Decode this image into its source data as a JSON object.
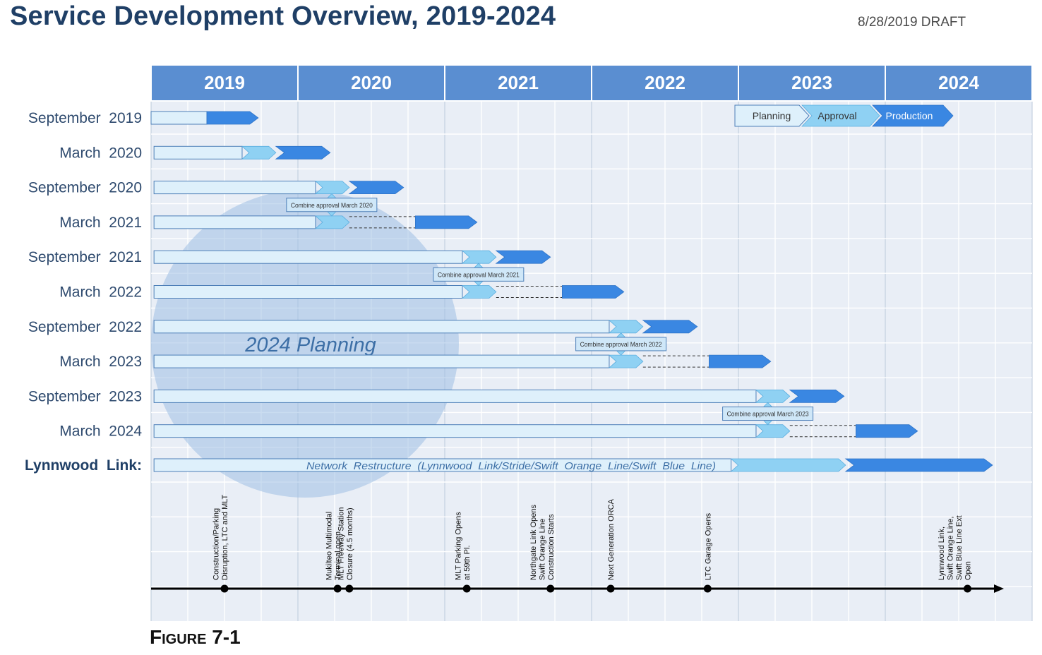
{
  "header": {
    "title": "Service Development Overview, 2019-2024",
    "draft_label": "8/28/2019 DRAFT"
  },
  "caption": "Figure 7-1",
  "colors": {
    "header_band": "#5a8ed1",
    "planning": "#def0fb",
    "approval": "#8fd1f3",
    "production": "#3a87e2",
    "grid_bg": "#e9eef6",
    "circle": "#9ec0e4",
    "outline": "#4d7fb8"
  },
  "chart_data": {
    "type": "gantt",
    "title": "Service Development Overview, 2019-2024",
    "x_axis": {
      "unit": "year",
      "range": [
        2019,
        2025
      ],
      "labels": [
        "2019",
        "2020",
        "2021",
        "2022",
        "2023",
        "2024"
      ]
    },
    "legend": {
      "placement": "top-right",
      "items": [
        {
          "label": "Planning",
          "color": "#def0fb"
        },
        {
          "label": "Approval",
          "color": "#8fd1f3"
        },
        {
          "label": "Production",
          "color": "#3a87e2"
        }
      ]
    },
    "rows": [
      {
        "label": "September  2019",
        "bold": false,
        "planning": [
          2019.0,
          2019.38
        ],
        "production": [
          2019.38,
          2019.73
        ]
      },
      {
        "label": "March  2020",
        "bold": false,
        "planning": [
          2019.02,
          2019.62
        ],
        "approval": [
          2019.62,
          2019.85
        ],
        "production": [
          2019.85,
          2020.22
        ]
      },
      {
        "label": "September  2020",
        "bold": false,
        "planning": [
          2019.02,
          2020.12
        ],
        "approval": [
          2020.12,
          2020.35
        ],
        "production": [
          2020.35,
          2020.72
        ]
      },
      {
        "label": "March  2021",
        "bold": false,
        "planning": [
          2019.02,
          2020.12
        ],
        "approval": [
          2020.12,
          2020.35
        ],
        "wait": [
          2020.35,
          2020.8
        ],
        "production": [
          2020.8,
          2021.22
        ]
      },
      {
        "label": "September  2021",
        "bold": false,
        "planning": [
          2019.02,
          2021.12
        ],
        "approval": [
          2021.12,
          2021.35
        ],
        "production": [
          2021.35,
          2021.72
        ]
      },
      {
        "label": "March  2022",
        "bold": false,
        "planning": [
          2019.02,
          2021.12
        ],
        "approval": [
          2021.12,
          2021.35
        ],
        "wait": [
          2021.35,
          2021.8
        ],
        "production": [
          2021.8,
          2022.22
        ]
      },
      {
        "label": "September  2022",
        "bold": false,
        "planning": [
          2019.02,
          2022.12
        ],
        "approval": [
          2022.12,
          2022.35
        ],
        "production": [
          2022.35,
          2022.72
        ]
      },
      {
        "label": "March  2023",
        "bold": false,
        "planning": [
          2019.02,
          2022.12
        ],
        "approval": [
          2022.12,
          2022.35
        ],
        "wait": [
          2022.35,
          2022.8
        ],
        "production": [
          2022.8,
          2023.22
        ]
      },
      {
        "label": "September  2023",
        "bold": false,
        "planning": [
          2019.02,
          2023.12
        ],
        "approval": [
          2023.12,
          2023.35
        ],
        "production": [
          2023.35,
          2023.72
        ]
      },
      {
        "label": "March  2024",
        "bold": false,
        "planning": [
          2019.02,
          2023.12
        ],
        "approval": [
          2023.12,
          2023.35
        ],
        "wait": [
          2023.35,
          2023.8
        ],
        "production": [
          2023.8,
          2024.22
        ]
      },
      {
        "label": "Lynnwood  Link:",
        "bold": true,
        "bar_text": "Network  Restructure  (Lynnwood  Link/Stride/Swift  Orange  Line/Swift  Blue  Line)",
        "planning": [
          2019.02,
          2022.95
        ],
        "approval": [
          2022.95,
          2023.73
        ],
        "production": [
          2023.73,
          2024.73
        ]
      }
    ],
    "combine_notes": [
      {
        "text": "Combine approval March 2020",
        "x": 2020.23,
        "between_rows": [
          2,
          3
        ]
      },
      {
        "text": "Combine approval March 2021",
        "x": 2021.23,
        "between_rows": [
          4,
          5
        ]
      },
      {
        "text": "Combine approval March 2022",
        "x": 2022.2,
        "between_rows": [
          6,
          7
        ]
      },
      {
        "text": "Combine approval March 2023",
        "x": 2023.2,
        "between_rows": [
          8,
          9
        ]
      }
    ],
    "annotations": [
      {
        "text": "2024 Planning"
      }
    ],
    "milestones": [
      {
        "x": 2019.5,
        "label": [
          "Construction/Parking",
          "Disruption, LTC and MLT"
        ]
      },
      {
        "x": 2020.27,
        "label": [
          "Mukilteo Multimodal",
          "Terminal open"
        ]
      },
      {
        "x": 2020.35,
        "label": [
          "MLT Freeway Station",
          "Closure (4.5 months)"
        ]
      },
      {
        "x": 2021.15,
        "label": [
          "MLT Parking Opens",
          "at 59th Pl."
        ]
      },
      {
        "x": 2021.72,
        "label": [
          "Northgate Link Opens",
          "Swift Orange Line",
          "Construction Starts"
        ]
      },
      {
        "x": 2022.13,
        "label": [
          "Next Generation ORCA"
        ]
      },
      {
        "x": 2022.79,
        "label": [
          "LTC Garage Opens"
        ]
      },
      {
        "x": 2024.56,
        "label": [
          "Lynnwood Link,",
          "Swift Orange Line,",
          "Swift Blue Line Ext",
          "Open"
        ]
      }
    ],
    "grid": true
  }
}
